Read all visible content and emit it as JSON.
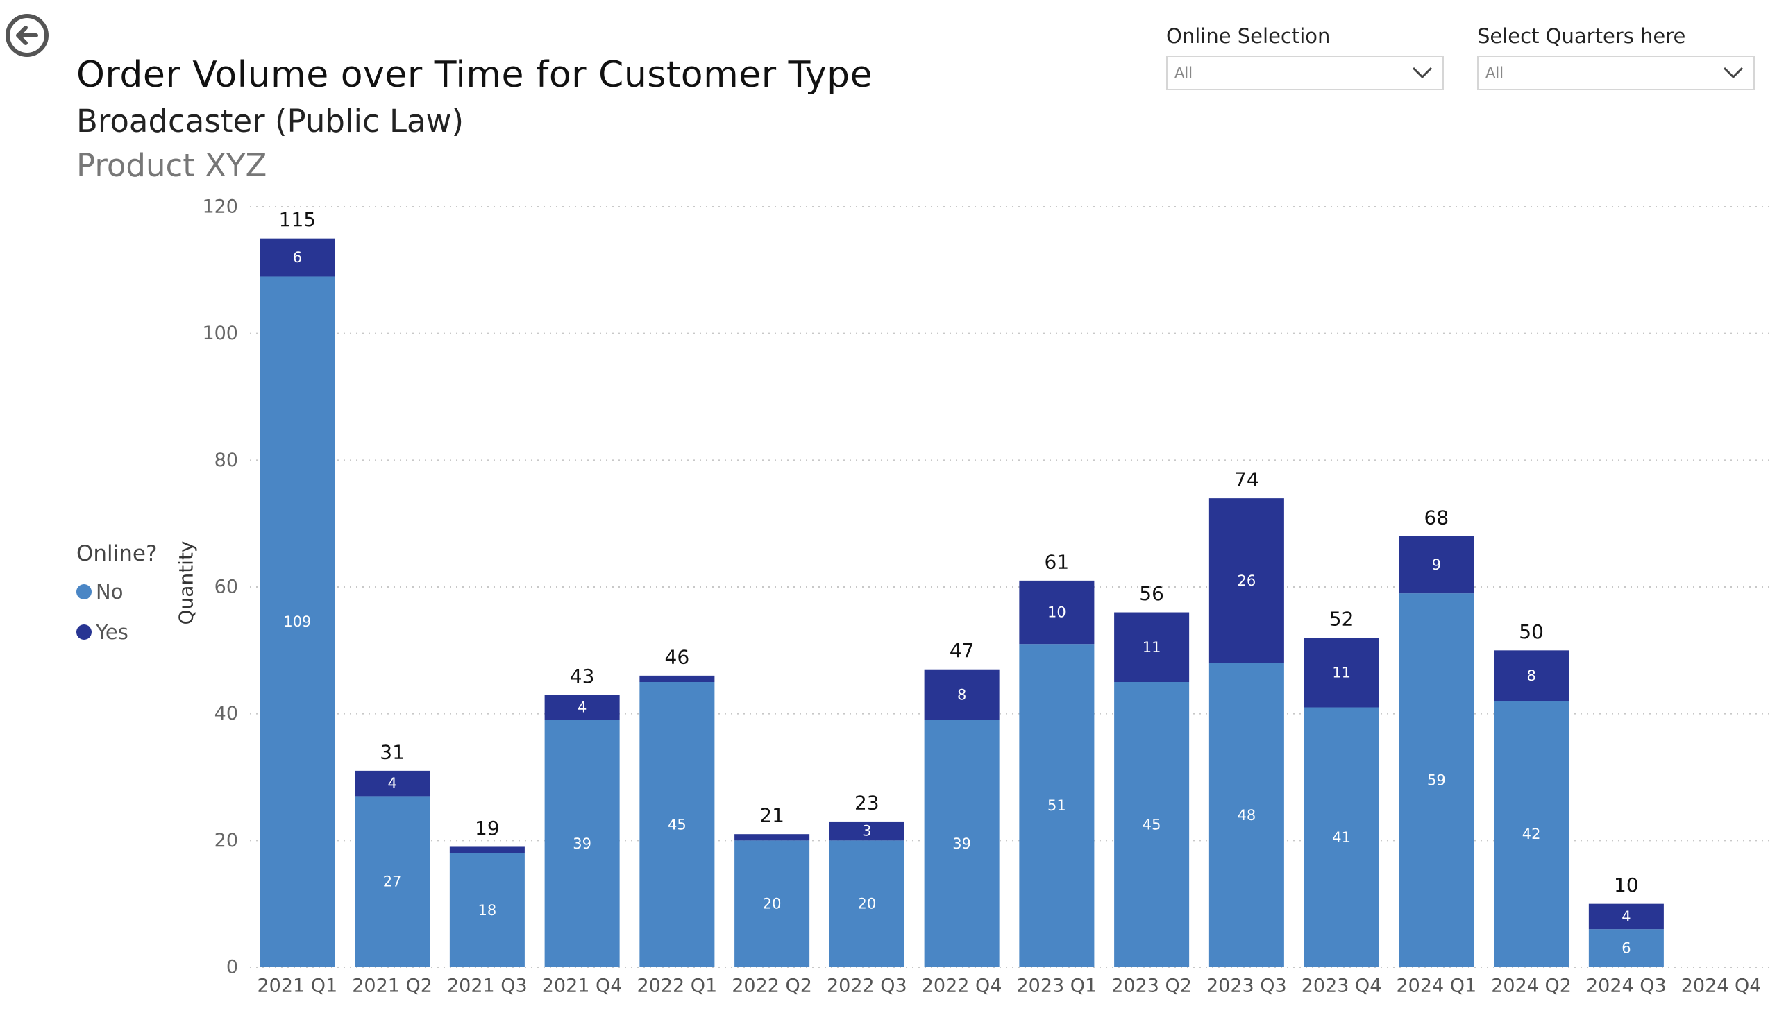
{
  "header": {
    "title": "Order Volume over Time for Customer Type",
    "subtitle": "Broadcaster (Public Law)",
    "product": "Product XYZ"
  },
  "slicers": [
    {
      "label": "Online Selection",
      "value": "All"
    },
    {
      "label": "Select Quarters here",
      "value": "All"
    }
  ],
  "legend": {
    "title": "Online?",
    "items": [
      {
        "label": "No",
        "color": "#4A86C5"
      },
      {
        "label": "Yes",
        "color": "#283593"
      }
    ]
  },
  "chart_data": {
    "type": "bar",
    "stacked": true,
    "ylabel": "Quantity",
    "xlabel": "",
    "ylim": [
      0,
      120
    ],
    "yticks": [
      0,
      20,
      40,
      60,
      80,
      100,
      120
    ],
    "grid": true,
    "categories": [
      "2021 Q1",
      "2021 Q2",
      "2021 Q3",
      "2021 Q4",
      "2022 Q1",
      "2022 Q2",
      "2022 Q3",
      "2022 Q4",
      "2023 Q1",
      "2023 Q2",
      "2023 Q3",
      "2023 Q4",
      "2024 Q1",
      "2024 Q2",
      "2024 Q3",
      "2024 Q4"
    ],
    "series": [
      {
        "name": "No",
        "color": "#4A86C5",
        "values": [
          109,
          27,
          18,
          39,
          45,
          20,
          20,
          39,
          51,
          45,
          48,
          41,
          59,
          42,
          6,
          null
        ],
        "labels": [
          "109",
          "27",
          "18",
          "39",
          "45",
          "20",
          "20",
          "39",
          "51",
          "45",
          "48",
          "41",
          "59",
          "42",
          "6",
          ""
        ]
      },
      {
        "name": "Yes",
        "color": "#283593",
        "values": [
          6,
          4,
          1,
          4,
          1,
          1,
          3,
          8,
          10,
          11,
          26,
          11,
          9,
          8,
          4,
          null
        ],
        "labels": [
          "6",
          "4",
          "",
          "4",
          "",
          "",
          "3",
          "8",
          "10",
          "11",
          "26",
          "11",
          "9",
          "8",
          "4",
          ""
        ]
      }
    ],
    "totals": [
      "115",
      "31",
      "19",
      "43",
      "46",
      "21",
      "23",
      "47",
      "61",
      "56",
      "74",
      "52",
      "68",
      "50",
      "10",
      ""
    ]
  }
}
